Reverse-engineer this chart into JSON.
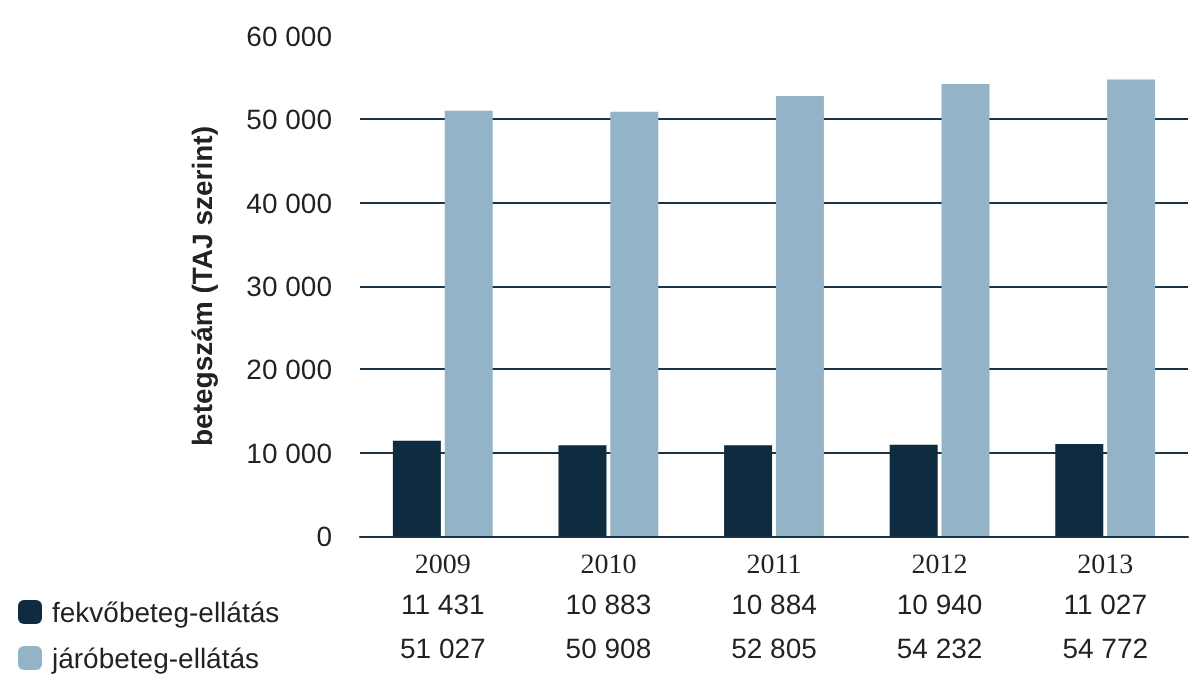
{
  "chart_data": {
    "type": "bar",
    "ylabel": "betegszám (TAJ szerint)",
    "categories": [
      "2009",
      "2010",
      "2011",
      "2012",
      "2013"
    ],
    "series": [
      {
        "name": "fekvőbeteg-ellátás",
        "color": "#0f2b40",
        "values": [
          11431,
          10883,
          10884,
          10940,
          11027
        ]
      },
      {
        "name": "járóbeteg-ellátás",
        "color": "#93b3c6",
        "values": [
          51027,
          50908,
          52805,
          54232,
          54772
        ]
      }
    ],
    "ylim": [
      0,
      60000
    ],
    "yticks": [
      {
        "value": 0,
        "label": "0"
      },
      {
        "value": 10000,
        "label": "10 000"
      },
      {
        "value": 20000,
        "label": "20 000"
      },
      {
        "value": 30000,
        "label": "30 000"
      },
      {
        "value": 40000,
        "label": "40 000"
      },
      {
        "value": 50000,
        "label": "50 000"
      },
      {
        "value": 60000,
        "label": "60 000"
      }
    ],
    "grid": "y",
    "legend": "bottom left",
    "data_labels": true
  }
}
